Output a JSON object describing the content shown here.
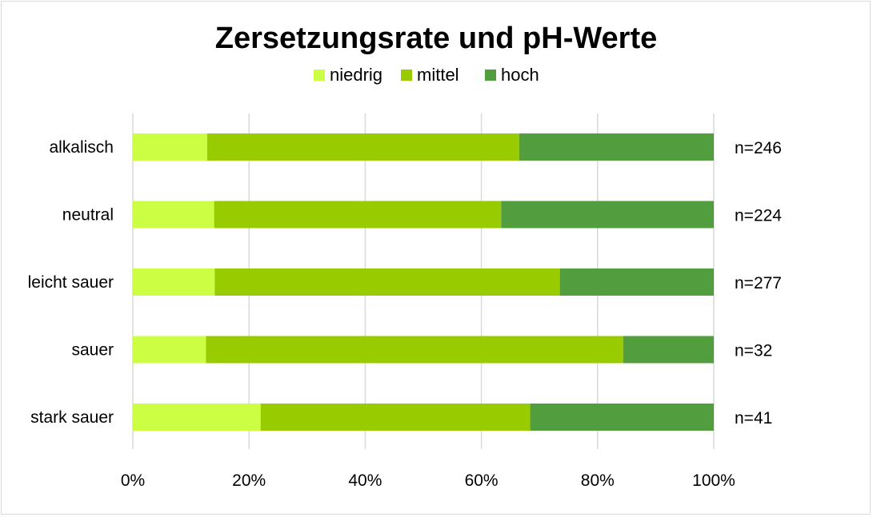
{
  "chart_data": {
    "type": "bar",
    "orientation": "horizontal",
    "stacked": "percent",
    "title": "Zersetzungsrate und pH-Werte",
    "legend_position": "top",
    "categories": [
      "alkalisch",
      "neutral",
      "leicht sauer",
      "sauer",
      "stark sauer"
    ],
    "series": [
      {
        "name": "niedrig",
        "color": "#ccff44",
        "values": [
          12.8,
          14.0,
          14.1,
          12.6,
          22.0
        ]
      },
      {
        "name": "mittel",
        "color": "#99cc00",
        "values": [
          53.7,
          49.4,
          59.4,
          71.8,
          46.4
        ]
      },
      {
        "name": "hoch",
        "color": "#529e3e",
        "values": [
          33.5,
          36.6,
          26.5,
          15.6,
          31.6
        ]
      }
    ],
    "xlim": [
      0,
      100
    ],
    "x_ticks": [
      "0%",
      "20%",
      "40%",
      "60%",
      "80%",
      "100%"
    ],
    "annotations": [
      "n=246",
      "n=224",
      "n=277",
      "n=32",
      "n=41"
    ],
    "grid": "vertical"
  }
}
